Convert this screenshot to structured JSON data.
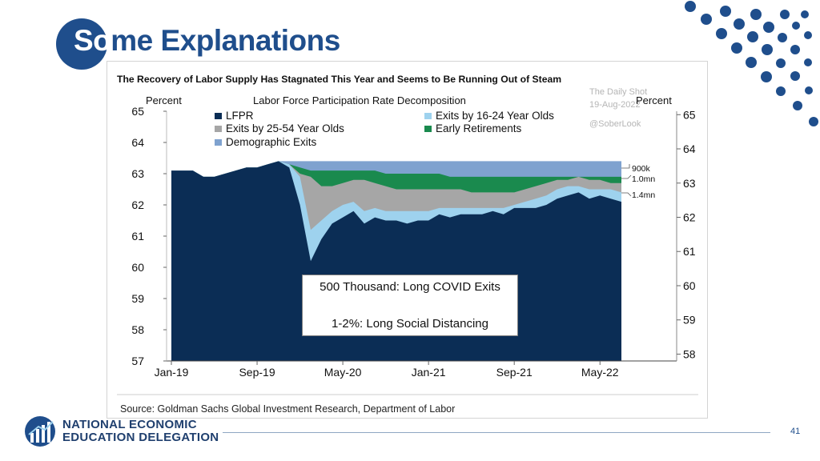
{
  "slide": {
    "title_highlight": "So",
    "title_rest": "me Explanations",
    "page_number": "41",
    "org_line1": "NATIONAL ECONOMIC",
    "org_line2": "EDUCATION DELEGATION"
  },
  "chart_data": {
    "type": "area",
    "title": "The Recovery of Labor Supply Has Stagnated This Year and Seems to Be Running Out of Steam",
    "subtitle": "Labor Force Participation Rate Decomposition",
    "ylabel_left": "Percent",
    "ylabel_right": "Percent",
    "watermark": [
      "The Daily Shot",
      "19-Aug-2022",
      "@SoberLook"
    ],
    "source": "Source: Goldman Sachs Global Investment Research, Department of Labor",
    "left_axis": {
      "min": 57,
      "max": 65,
      "ticks": [
        "57",
        "58",
        "59",
        "60",
        "61",
        "62",
        "63",
        "64",
        "65"
      ]
    },
    "right_axis": {
      "min": 57.8,
      "max": 65.1,
      "ticks": [
        "58",
        "59",
        "60",
        "61",
        "62",
        "63",
        "64",
        "65"
      ]
    },
    "x_ticks": [
      "Jan-19",
      "Sep-19",
      "May-20",
      "Jan-21",
      "Sep-21",
      "May-22"
    ],
    "legend": [
      "LFPR",
      "Exits by 16-24 Year Olds",
      "Exits by 25-54 Year Olds",
      "Early Retirements",
      "Demographic Exits"
    ],
    "colors": {
      "LFPR": "#0b2d55",
      "Exits by 16-24 Year Olds": "#9ed2ee",
      "Exits by 25-54 Year Olds": "#a6a6a6",
      "Early Retirements": "#1a8a4e",
      "Demographic Exits": "#7fa2cf"
    },
    "annotations": [
      "900k",
      "1.0mn",
      "1.4mn"
    ],
    "series": [
      {
        "name": "LFPR",
        "x": [
          0,
          2,
          3,
          4,
          5,
          6,
          7,
          8,
          9,
          10,
          11,
          12,
          13,
          14,
          15,
          16,
          17,
          18,
          19,
          20,
          21,
          22,
          23,
          24,
          25,
          26,
          27,
          28,
          29,
          30,
          31,
          32,
          33,
          34,
          35,
          36,
          37,
          38,
          39,
          40,
          41,
          42
        ],
        "values": [
          63.1,
          63.1,
          62.9,
          62.9,
          63.0,
          63.1,
          63.2,
          63.2,
          63.3,
          63.4,
          63.2,
          62.0,
          60.2,
          60.9,
          61.4,
          61.6,
          61.8,
          61.4,
          61.6,
          61.5,
          61.5,
          61.4,
          61.5,
          61.5,
          61.7,
          61.6,
          61.7,
          61.7,
          61.7,
          61.8,
          61.7,
          61.9,
          61.9,
          61.9,
          62.0,
          62.2,
          62.3,
          62.4,
          62.2,
          62.3,
          62.2,
          62.1
        ]
      },
      {
        "name": "Exits by 16-24 Year Olds",
        "x": [
          0,
          2,
          3,
          4,
          5,
          6,
          7,
          8,
          9,
          10,
          11,
          12,
          13,
          14,
          15,
          16,
          17,
          18,
          19,
          20,
          21,
          22,
          23,
          24,
          25,
          26,
          27,
          28,
          29,
          30,
          31,
          32,
          33,
          34,
          35,
          36,
          37,
          38,
          39,
          40,
          41,
          42
        ],
        "values": [
          63.1,
          63.1,
          62.9,
          62.9,
          63.0,
          63.1,
          63.2,
          63.2,
          63.3,
          63.4,
          63.3,
          62.9,
          61.2,
          61.5,
          61.8,
          62.0,
          62.1,
          61.8,
          61.9,
          61.8,
          61.8,
          61.8,
          61.8,
          61.8,
          61.9,
          61.9,
          61.9,
          61.9,
          61.9,
          61.9,
          61.9,
          62.0,
          62.1,
          62.2,
          62.3,
          62.5,
          62.6,
          62.6,
          62.5,
          62.5,
          62.5,
          62.4
        ]
      },
      {
        "name": "Exits by 25-54 Year Olds",
        "x": [
          0,
          2,
          3,
          4,
          5,
          6,
          7,
          8,
          9,
          10,
          11,
          12,
          13,
          14,
          15,
          16,
          17,
          18,
          19,
          20,
          21,
          22,
          23,
          24,
          25,
          26,
          27,
          28,
          29,
          30,
          31,
          32,
          33,
          34,
          35,
          36,
          37,
          38,
          39,
          40,
          41,
          42
        ],
        "values": [
          63.1,
          63.1,
          62.9,
          62.9,
          63.0,
          63.1,
          63.2,
          63.2,
          63.3,
          63.4,
          63.3,
          63.0,
          62.9,
          62.6,
          62.6,
          62.7,
          62.8,
          62.8,
          62.7,
          62.6,
          62.5,
          62.5,
          62.5,
          62.5,
          62.5,
          62.5,
          62.5,
          62.4,
          62.4,
          62.4,
          62.4,
          62.4,
          62.5,
          62.6,
          62.7,
          62.8,
          62.8,
          62.9,
          62.8,
          62.8,
          62.7,
          62.7
        ]
      },
      {
        "name": "Early Retirements",
        "x": [
          0,
          2,
          3,
          4,
          5,
          6,
          7,
          8,
          9,
          10,
          11,
          12,
          13,
          14,
          15,
          16,
          17,
          18,
          19,
          20,
          21,
          22,
          23,
          24,
          25,
          26,
          27,
          28,
          29,
          30,
          31,
          32,
          33,
          34,
          35,
          36,
          37,
          38,
          39,
          40,
          41,
          42
        ],
        "values": [
          63.1,
          63.1,
          62.9,
          62.9,
          63.0,
          63.1,
          63.2,
          63.2,
          63.3,
          63.4,
          63.3,
          63.2,
          63.1,
          63.1,
          63.1,
          63.1,
          63.1,
          63.1,
          63.1,
          63.0,
          63.0,
          63.0,
          63.0,
          63.0,
          63.0,
          62.9,
          62.9,
          62.9,
          62.9,
          62.9,
          62.9,
          62.9,
          62.9,
          62.9,
          62.9,
          62.9,
          62.9,
          62.9,
          62.9,
          62.9,
          62.9,
          62.9
        ]
      },
      {
        "name": "Demographic Exits",
        "x": [
          0,
          2,
          3,
          4,
          5,
          6,
          7,
          8,
          9,
          10,
          11,
          12,
          13,
          14,
          15,
          16,
          17,
          18,
          19,
          20,
          21,
          22,
          23,
          24,
          25,
          26,
          27,
          28,
          29,
          30,
          31,
          32,
          33,
          34,
          35,
          36,
          37,
          38,
          39,
          40,
          41,
          42
        ],
        "values": [
          63.1,
          63.1,
          62.9,
          62.9,
          63.0,
          63.1,
          63.2,
          63.2,
          63.3,
          63.4,
          63.4,
          63.4,
          63.4,
          63.4,
          63.4,
          63.4,
          63.4,
          63.4,
          63.4,
          63.4,
          63.4,
          63.4,
          63.4,
          63.4,
          63.4,
          63.4,
          63.4,
          63.4,
          63.4,
          63.4,
          63.4,
          63.4,
          63.4,
          63.4,
          63.4,
          63.4,
          63.4,
          63.4,
          63.4,
          63.4,
          63.4,
          63.4
        ]
      }
    ]
  },
  "overlay": {
    "line1": "500 Thousand: Long COVID Exits",
    "line2": "1-2%: Long Social Distancing"
  }
}
